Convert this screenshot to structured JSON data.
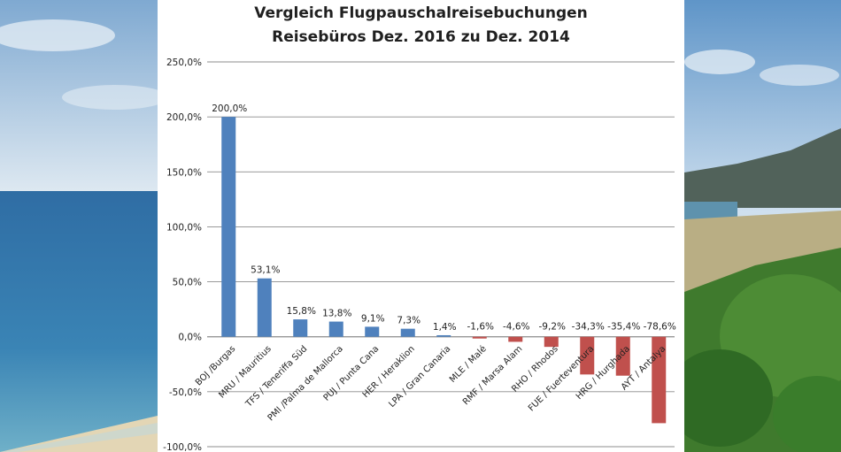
{
  "chart_data": {
    "type": "bar",
    "title_lines": [
      "Vergleich Flugpauschalreisebuchungen",
      "Reisebüros Dez. 2016 zu Dez. 2014"
    ],
    "categories": [
      "BOJ /Burgas",
      "MRU / Mauritius",
      "TFS / Teneriffa Süd",
      "PMI /Palma de Mallorca",
      "PUJ / Punta Cana",
      "HER / Heraklion",
      "LPA / Gran Canaria",
      "MLE / Malé",
      "RMF / Marsa Alam",
      "RHO / Rhodos",
      "FUE / Fuerteventura",
      "HRG / Hurghada",
      "AYT / Antalya"
    ],
    "values": [
      200.0,
      53.1,
      15.8,
      13.8,
      9.1,
      7.3,
      1.4,
      -1.6,
      -4.6,
      -9.2,
      -34.3,
      -35.4,
      -78.6
    ],
    "data_labels": [
      "200,0%",
      "53,1%",
      "15,8%",
      "13,8%",
      "9,1%",
      "7,3%",
      "1,4%",
      "-1,6%",
      "-4,6%",
      "-9,2%",
      "-34,3%",
      "-35,4%",
      "-78,6%"
    ],
    "ylim": [
      -100,
      250
    ],
    "yticks": [
      250,
      200,
      150,
      100,
      50,
      0,
      -50,
      -100
    ],
    "ytick_labels": [
      "250,0%",
      "200,0%",
      "150,0%",
      "100,0%",
      "50,0%",
      "0,0%",
      "-50,0%",
      "-100,0%"
    ],
    "grid": true,
    "legend": "none",
    "colors": {
      "positive": "#4f81bd",
      "negative": "#c0504d",
      "grid": "#8c8c8c"
    }
  }
}
